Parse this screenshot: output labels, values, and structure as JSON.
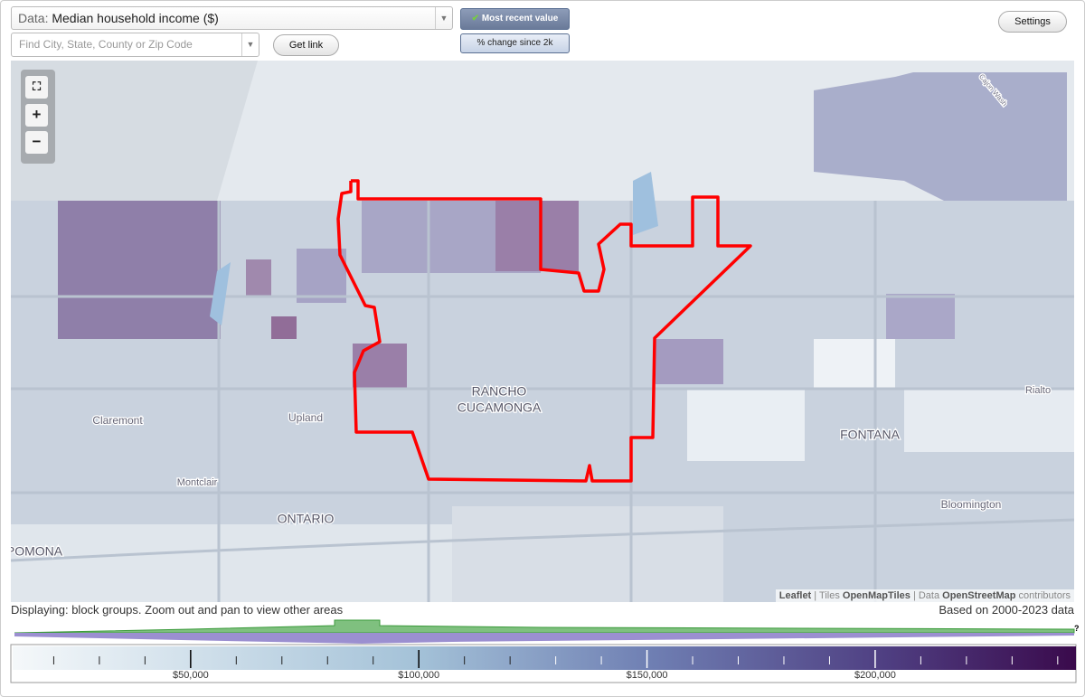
{
  "controls": {
    "data_label": "Data:",
    "data_value": "Median household income ($)",
    "search_placeholder": "Find City, State, County or Zip Code",
    "get_link": "Get link",
    "most_recent": "Most recent value",
    "pct_change": "% change since 2k",
    "settings": "Settings"
  },
  "map": {
    "labels": [
      "RANCHO",
      "CUCAMONGA",
      "Upland",
      "Claremont",
      "Montclair",
      "ONTARIO",
      "POMONA",
      "FONTANA",
      "Rialto",
      "Bloomington",
      "Cajon Wash"
    ],
    "attribution": [
      {
        "text": "Leaflet",
        "bold": true
      },
      {
        "text": "| Tiles",
        "bold": false
      },
      {
        "text": "OpenMapTiles",
        "bold": true
      },
      {
        "text": "| Data",
        "bold": false
      },
      {
        "text": "OpenStreetMap",
        "bold": true
      },
      {
        "text": "contributors",
        "bold": false
      }
    ]
  },
  "status": {
    "displaying": "Displaying: block groups. Zoom out and pan to view other areas",
    "based_on": "Based on 2000-2023 data",
    "help": "?"
  },
  "legend": {
    "range": [
      11000,
      244000
    ],
    "ticks": [
      {
        "value": 50000,
        "label": "$50,000"
      },
      {
        "value": 100000,
        "label": "$100,000"
      },
      {
        "value": 150000,
        "label": "$150,000"
      },
      {
        "value": 200000,
        "label": "$200,000"
      }
    ],
    "minor_ticks": [
      20000,
      30000,
      40000,
      60000,
      70000,
      80000,
      90000,
      110000,
      120000,
      130000,
      140000,
      160000,
      170000,
      180000,
      190000,
      210000,
      220000,
      230000,
      240000
    ]
  }
}
